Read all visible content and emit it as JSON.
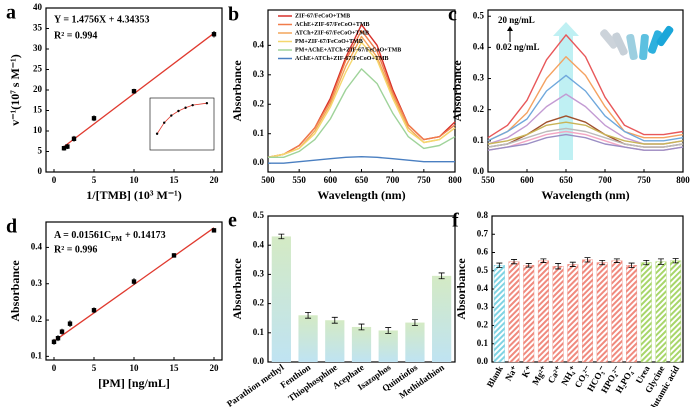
{
  "chart_data": [
    {
      "type": "scatter",
      "label": "a",
      "xlabel": "1/[TMB] (10³ M⁻¹)",
      "ylabel": "v⁻¹(10⁷ s M⁻¹)",
      "x": [
        1.25,
        1.67,
        2.5,
        5,
        10,
        20
      ],
      "values": [
        5.8,
        6.2,
        8.1,
        13.1,
        19.7,
        33.6
      ],
      "errors": [
        0.6,
        0.6,
        0.7,
        0.7,
        0.6,
        0.8
      ],
      "xlim": [
        -1,
        21
      ],
      "xticks": [
        0,
        5,
        10,
        15,
        20
      ],
      "ylim": [
        0,
        40
      ],
      "yticks": [
        0,
        5,
        10,
        15,
        20,
        25,
        30,
        35,
        40
      ],
      "equation": "Y = 1.4756X + 4.34353",
      "r2": "R² = 0.994",
      "fit": {
        "slope": 1.4756,
        "intercept": 4.34353
      },
      "color": "#e03a2f",
      "inset": {
        "x": [
          0.1,
          0.2,
          0.3,
          0.4,
          0.5,
          0.6,
          0.8
        ],
        "y": [
          2.5,
          4.2,
          5.3,
          6.0,
          6.5,
          6.9,
          7.2
        ],
        "xlim": [
          0,
          0.9
        ],
        "ylim": [
          0,
          8
        ]
      }
    },
    {
      "type": "line",
      "label": "b",
      "xlabel": "Wavelength (nm)",
      "ylabel": "Absorbance",
      "x": [
        500,
        525,
        550,
        575,
        600,
        625,
        650,
        675,
        700,
        725,
        750,
        775,
        800
      ],
      "xlim": [
        500,
        800
      ],
      "xticks": [
        500,
        550,
        600,
        650,
        700,
        750,
        800
      ],
      "ylim": [
        -0.03,
        0.52
      ],
      "yticks": [
        {
          "value": 0,
          "label": "0.0"
        },
        0.1,
        0.2,
        0.3,
        0.4
      ],
      "series": [
        {
          "name": "ZIF-67/FeCoO+TMB",
          "color": "#d7302a",
          "values": [
            0.02,
            0.03,
            0.06,
            0.12,
            0.22,
            0.36,
            0.47,
            0.4,
            0.25,
            0.13,
            0.08,
            0.09,
            0.14
          ]
        },
        {
          "name": "AChE+ZIF-67/FeCoO+TMB",
          "color": "#f07c4a",
          "values": [
            0.02,
            0.03,
            0.06,
            0.12,
            0.21,
            0.35,
            0.45,
            0.38,
            0.24,
            0.13,
            0.08,
            0.09,
            0.13
          ]
        },
        {
          "name": "ATCh+ZIF-67/FeCoO+TMB",
          "color": "#f2a65a",
          "values": [
            0.02,
            0.03,
            0.05,
            0.11,
            0.2,
            0.33,
            0.43,
            0.36,
            0.23,
            0.12,
            0.07,
            0.08,
            0.12
          ]
        },
        {
          "name": "PM+ZIF-67/FeCoO+TMB",
          "color": "#f5d76e",
          "values": [
            0.02,
            0.03,
            0.05,
            0.1,
            0.19,
            0.31,
            0.41,
            0.35,
            0.22,
            0.11,
            0.07,
            0.08,
            0.12
          ]
        },
        {
          "name": "PM+AChE+ATCh+ZIF-67/FeCoO+TMB",
          "color": "#9fd39a",
          "values": [
            0.02,
            0.02,
            0.04,
            0.08,
            0.15,
            0.25,
            0.32,
            0.27,
            0.17,
            0.09,
            0.05,
            0.06,
            0.09
          ]
        },
        {
          "name": "AChE+ATCh+ZIF-67/FeCoO+TMB",
          "color": "#4a7fc1",
          "values": [
            0.0,
            0.0,
            0.005,
            0.01,
            0.015,
            0.02,
            0.022,
            0.02,
            0.015,
            0.01,
            0.005,
            0.005,
            0.005
          ]
        }
      ]
    },
    {
      "type": "line",
      "label": "c",
      "xlabel": "Wavelength (nm)",
      "ylabel": "Absorbance",
      "x": [
        550,
        575,
        600,
        625,
        650,
        675,
        700,
        725,
        750,
        775,
        800
      ],
      "xlim": [
        550,
        800
      ],
      "xticks": [
        550,
        600,
        650,
        700,
        750,
        800
      ],
      "ylim": [
        0,
        0.52
      ],
      "yticks": [
        {
          "value": 0,
          "label": "0.0"
        },
        0.1,
        0.2,
        0.3,
        0.4,
        0.5
      ],
      "annotation_high": "20 ng/mL",
      "annotation_low": "0.02 ng/mL",
      "series": [
        {
          "color": "#e8585a",
          "values": [
            0.11,
            0.15,
            0.23,
            0.36,
            0.44,
            0.37,
            0.24,
            0.15,
            0.12,
            0.12,
            0.13
          ]
        },
        {
          "color": "#f4a261",
          "values": [
            0.1,
            0.13,
            0.19,
            0.3,
            0.37,
            0.31,
            0.21,
            0.13,
            0.11,
            0.11,
            0.12
          ]
        },
        {
          "color": "#6fa8dc",
          "values": [
            0.1,
            0.13,
            0.17,
            0.26,
            0.31,
            0.26,
            0.18,
            0.13,
            0.1,
            0.1,
            0.11
          ]
        },
        {
          "color": "#c39bd3",
          "values": [
            0.09,
            0.11,
            0.15,
            0.21,
            0.25,
            0.21,
            0.15,
            0.11,
            0.09,
            0.09,
            0.1
          ]
        },
        {
          "color": "#a0522d",
          "values": [
            0.08,
            0.09,
            0.12,
            0.16,
            0.18,
            0.16,
            0.12,
            0.09,
            0.08,
            0.08,
            0.09
          ]
        },
        {
          "color": "#c9b458",
          "values": [
            0.09,
            0.1,
            0.12,
            0.15,
            0.16,
            0.15,
            0.12,
            0.1,
            0.09,
            0.09,
            0.1
          ]
        },
        {
          "color": "#bbbbbb",
          "values": [
            0.08,
            0.09,
            0.11,
            0.13,
            0.14,
            0.13,
            0.11,
            0.09,
            0.08,
            0.08,
            0.09
          ]
        },
        {
          "color": "#f2a7c3",
          "values": [
            0.07,
            0.08,
            0.1,
            0.12,
            0.13,
            0.12,
            0.1,
            0.08,
            0.07,
            0.07,
            0.08
          ]
        },
        {
          "color": "#9b8ec4",
          "values": [
            0.07,
            0.08,
            0.09,
            0.11,
            0.12,
            0.11,
            0.09,
            0.08,
            0.07,
            0.07,
            0.08
          ]
        }
      ]
    },
    {
      "type": "scatter",
      "label": "d",
      "xlabel": "[PM] [ng/mL]",
      "ylabel": "Absorbance",
      "x": [
        0,
        0.5,
        1,
        2,
        5,
        10,
        15,
        20
      ],
      "values": [
        0.14,
        0.15,
        0.168,
        0.19,
        0.227,
        0.306,
        0.378,
        0.447
      ],
      "errors": [
        0.008,
        0.008,
        0.008,
        0.009,
        0.008,
        0.009,
        0.006,
        0.006
      ],
      "xlim": [
        -1,
        21
      ],
      "xticks": [
        0,
        5,
        10,
        15,
        20
      ],
      "ylim": [
        0.09,
        0.47
      ],
      "yticks": [
        0.1,
        0.2,
        0.3,
        0.4
      ],
      "equation": {
        "main": "A = 0.01561C",
        "sub": "PM",
        "rest": "+ 0.14173"
      },
      "r2": "R² = 0.996",
      "fit": {
        "slope": 0.01561,
        "intercept": 0.14173
      },
      "color": "#e03a2f"
    },
    {
      "type": "bar",
      "label": "e",
      "ylabel": "Absorbance",
      "categories": [
        "Parathion methyl",
        "Fenthion",
        "Thiophosphine",
        "Acephate",
        "Isazophos",
        "Quintiofos",
        "Methidathion"
      ],
      "values": [
        0.43,
        0.16,
        0.143,
        0.12,
        0.108,
        0.135,
        0.295
      ],
      "errors": [
        0.008,
        0.01,
        0.01,
        0.01,
        0.01,
        0.01,
        0.01
      ],
      "ylim": [
        0,
        0.5
      ],
      "yticks": [
        {
          "value": 0,
          "label": "0.0"
        },
        0.1,
        0.2,
        0.3,
        0.4,
        0.5
      ],
      "gradient": [
        "#d4eac4",
        "#bfe3f2"
      ]
    },
    {
      "type": "bar",
      "label": "f",
      "ylabel": "Absorbance",
      "categories": [
        "Blank",
        "Na⁺",
        "K⁺",
        "Mg²⁺",
        "Ca²⁺",
        "NH₄⁺",
        "CO₃²⁻",
        "HCO₃⁻",
        "HPO₄²⁻",
        "H₂PO₄⁻",
        "Urea",
        "Glycine",
        "Glutamic acid"
      ],
      "values": [
        0.53,
        0.55,
        0.53,
        0.555,
        0.525,
        0.535,
        0.56,
        0.545,
        0.555,
        0.53,
        0.545,
        0.55,
        0.555
      ],
      "errors": [
        0.012,
        0.012,
        0.01,
        0.01,
        0.015,
        0.012,
        0.012,
        0.012,
        0.01,
        0.012,
        0.012,
        0.015,
        0.012
      ],
      "colors": [
        "#7fd3e3",
        "#f08a7e",
        "#f08a7e",
        "#f08a7e",
        "#f08a7e",
        "#f08a7e",
        "#f08a7e",
        "#f08a7e",
        "#f08a7e",
        "#f08a7e",
        "#a8d66a",
        "#a8d66a",
        "#a8d66a"
      ],
      "ylim": [
        0,
        0.8
      ],
      "yticks": [
        {
          "value": 0,
          "label": "0.0"
        },
        0.1,
        0.2,
        0.3,
        0.4,
        0.5,
        0.6,
        0.7,
        0.8
      ]
    }
  ]
}
